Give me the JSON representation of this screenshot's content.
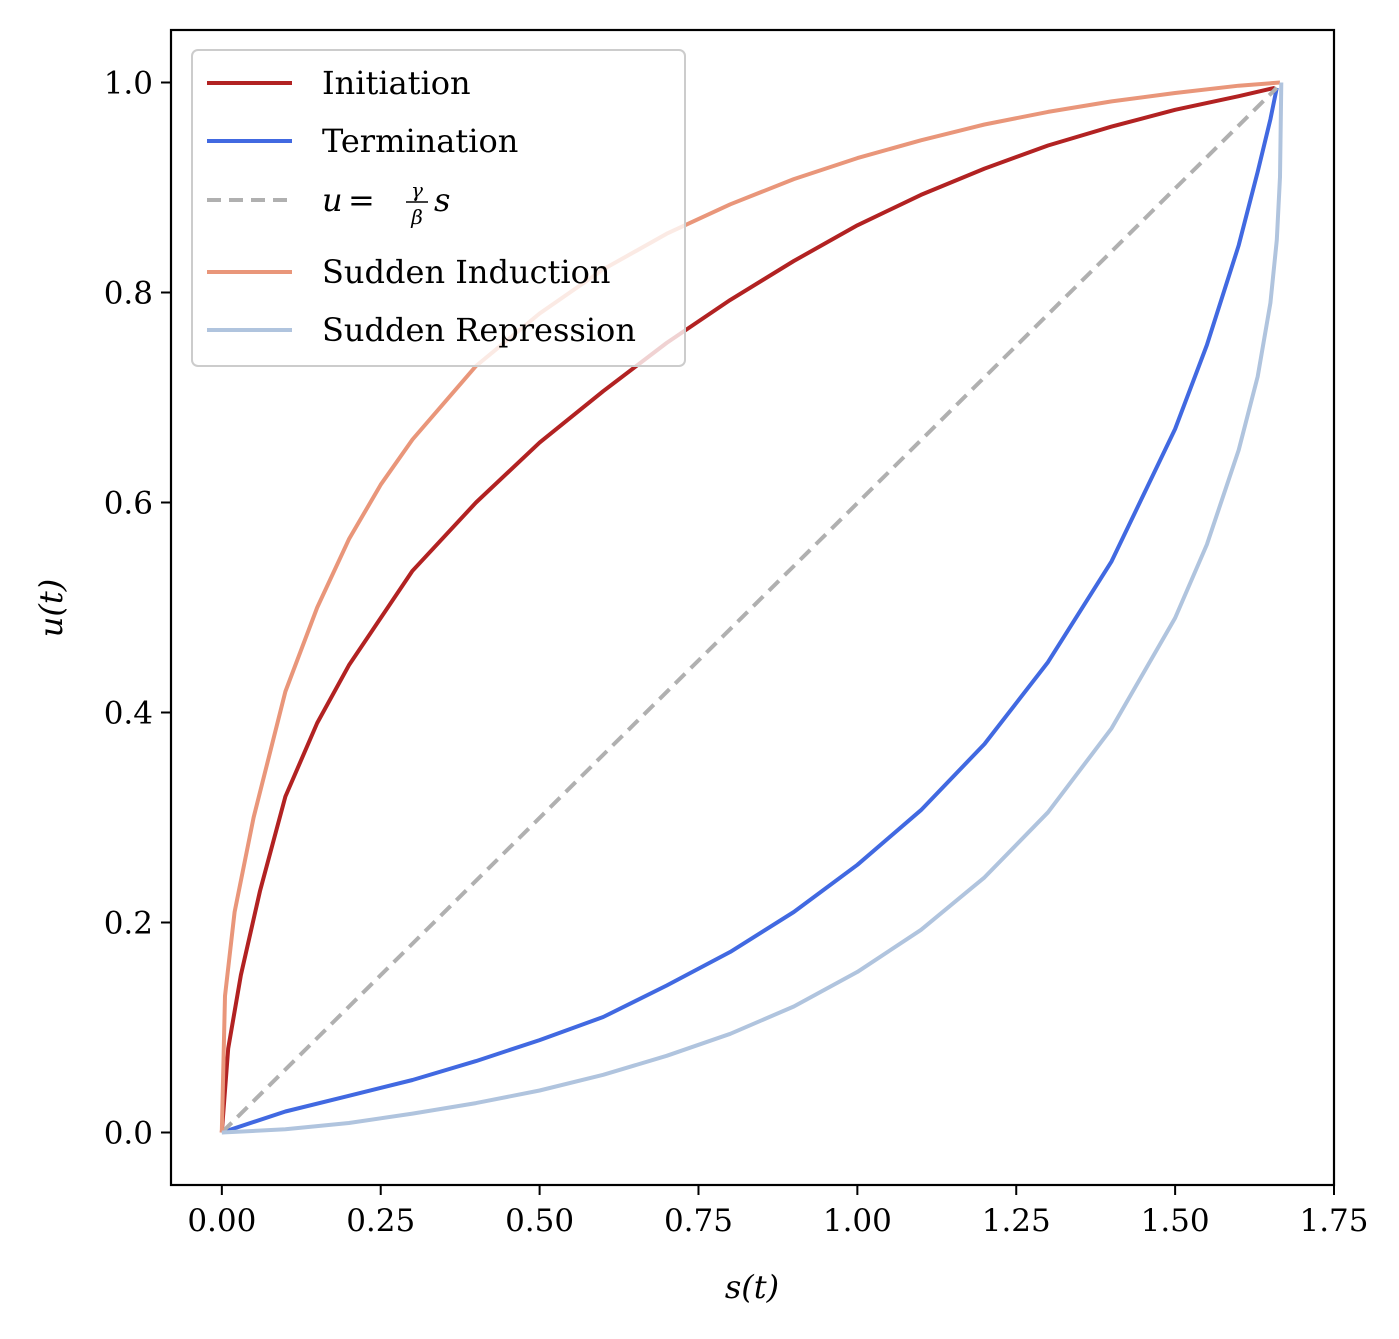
{
  "chart_data": {
    "type": "line",
    "xlabel": "s(t)",
    "ylabel": "u(t)",
    "xlim": [
      -0.08,
      1.75
    ],
    "ylim": [
      -0.05,
      1.05
    ],
    "xticks": [
      "0.00",
      "0.25",
      "0.50",
      "0.75",
      "1.00",
      "1.25",
      "1.50",
      "1.75"
    ],
    "yticks": [
      "0.0",
      "0.2",
      "0.4",
      "0.6",
      "0.8",
      "1.0"
    ],
    "grid": false,
    "legend_position": "upper-left",
    "series": [
      {
        "name": "Initiation",
        "color": "#b22222",
        "dash": "solid",
        "x": [
          0.0,
          0.01,
          0.03,
          0.06,
          0.1,
          0.15,
          0.2,
          0.25,
          0.3,
          0.4,
          0.5,
          0.6,
          0.7,
          0.8,
          0.9,
          1.0,
          1.1,
          1.2,
          1.3,
          1.4,
          1.5,
          1.6,
          1.657
        ],
        "y": [
          0.0,
          0.08,
          0.15,
          0.23,
          0.32,
          0.39,
          0.445,
          0.49,
          0.535,
          0.6,
          0.657,
          0.706,
          0.752,
          0.793,
          0.83,
          0.864,
          0.893,
          0.918,
          0.94,
          0.958,
          0.974,
          0.987,
          0.995
        ]
      },
      {
        "name": "Termination",
        "color": "#4169e1",
        "dash": "solid",
        "x": [
          0.0,
          0.1,
          0.2,
          0.3,
          0.4,
          0.5,
          0.6,
          0.7,
          0.8,
          0.9,
          1.0,
          1.1,
          1.2,
          1.3,
          1.4,
          1.5,
          1.55,
          1.6,
          1.63,
          1.65,
          1.655,
          1.66
        ],
        "y": [
          0.0,
          0.02,
          0.035,
          0.05,
          0.068,
          0.088,
          0.11,
          0.14,
          0.172,
          0.21,
          0.255,
          0.307,
          0.37,
          0.448,
          0.544,
          0.67,
          0.75,
          0.845,
          0.915,
          0.965,
          0.98,
          0.995
        ]
      },
      {
        "name": "u = γ/β s",
        "color": "#b0b0b0",
        "dash": "dashed",
        "x": [
          0.0,
          1.66
        ],
        "y": [
          0.0,
          0.995
        ]
      },
      {
        "name": "Sudden Induction",
        "color": "#e9967a",
        "dash": "solid",
        "x": [
          0.0,
          0.005,
          0.02,
          0.05,
          0.1,
          0.15,
          0.2,
          0.25,
          0.3,
          0.4,
          0.5,
          0.6,
          0.7,
          0.8,
          0.9,
          1.0,
          1.1,
          1.2,
          1.3,
          1.4,
          1.5,
          1.6,
          1.665
        ],
        "y": [
          0.0,
          0.13,
          0.21,
          0.3,
          0.42,
          0.5,
          0.565,
          0.617,
          0.66,
          0.73,
          0.78,
          0.822,
          0.856,
          0.884,
          0.908,
          0.928,
          0.945,
          0.96,
          0.972,
          0.982,
          0.99,
          0.997,
          1.0
        ]
      },
      {
        "name": "Sudden Repression",
        "color": "#b0c4de",
        "dash": "solid",
        "x": [
          0.0,
          0.1,
          0.2,
          0.3,
          0.4,
          0.5,
          0.6,
          0.7,
          0.8,
          0.9,
          1.0,
          1.1,
          1.2,
          1.3,
          1.4,
          1.5,
          1.55,
          1.6,
          1.63,
          1.65,
          1.66,
          1.665,
          1.667
        ],
        "y": [
          0.0,
          0.003,
          0.009,
          0.018,
          0.028,
          0.04,
          0.055,
          0.073,
          0.094,
          0.12,
          0.153,
          0.193,
          0.243,
          0.305,
          0.385,
          0.49,
          0.56,
          0.65,
          0.72,
          0.79,
          0.85,
          0.91,
          1.0
        ]
      }
    ]
  }
}
